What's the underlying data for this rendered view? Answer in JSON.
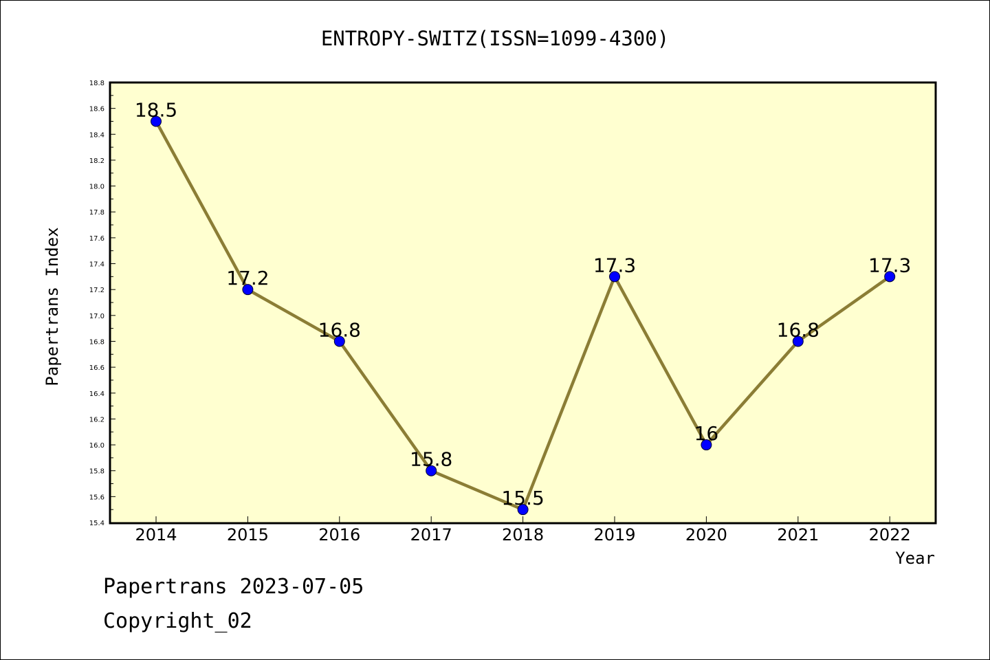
{
  "chart_data": {
    "type": "line",
    "title": "ENTROPY-SWITZ(ISSN=1099-4300)",
    "xlabel": "Year",
    "ylabel": "Papertrans Index",
    "categories": [
      "2014",
      "2015",
      "2016",
      "2017",
      "2018",
      "2019",
      "2020",
      "2021",
      "2022"
    ],
    "values": [
      18.5,
      17.2,
      16.8,
      15.8,
      15.5,
      17.3,
      16.0,
      16.8,
      17.3
    ],
    "data_labels": [
      "18.5",
      "17.2",
      "16.8",
      "15.8",
      "15.5",
      "17.3",
      "16",
      "16.8",
      "17.3"
    ],
    "ylim": [
      15.4,
      18.8
    ],
    "yticks": [
      "15.4",
      "15.6",
      "15.8",
      "16.0",
      "16.2",
      "16.4",
      "16.6",
      "16.8",
      "17.0",
      "17.2",
      "17.4",
      "17.6",
      "17.8",
      "18.0",
      "18.2",
      "18.4",
      "18.6",
      "18.8"
    ],
    "grid": false,
    "colors": {
      "plot_background": "#ffffd0",
      "line": "#8b7d35",
      "marker": "#0000ff"
    }
  },
  "footer": {
    "line1": "Papertrans 2023-07-05",
    "line2": "Copyright_02"
  }
}
